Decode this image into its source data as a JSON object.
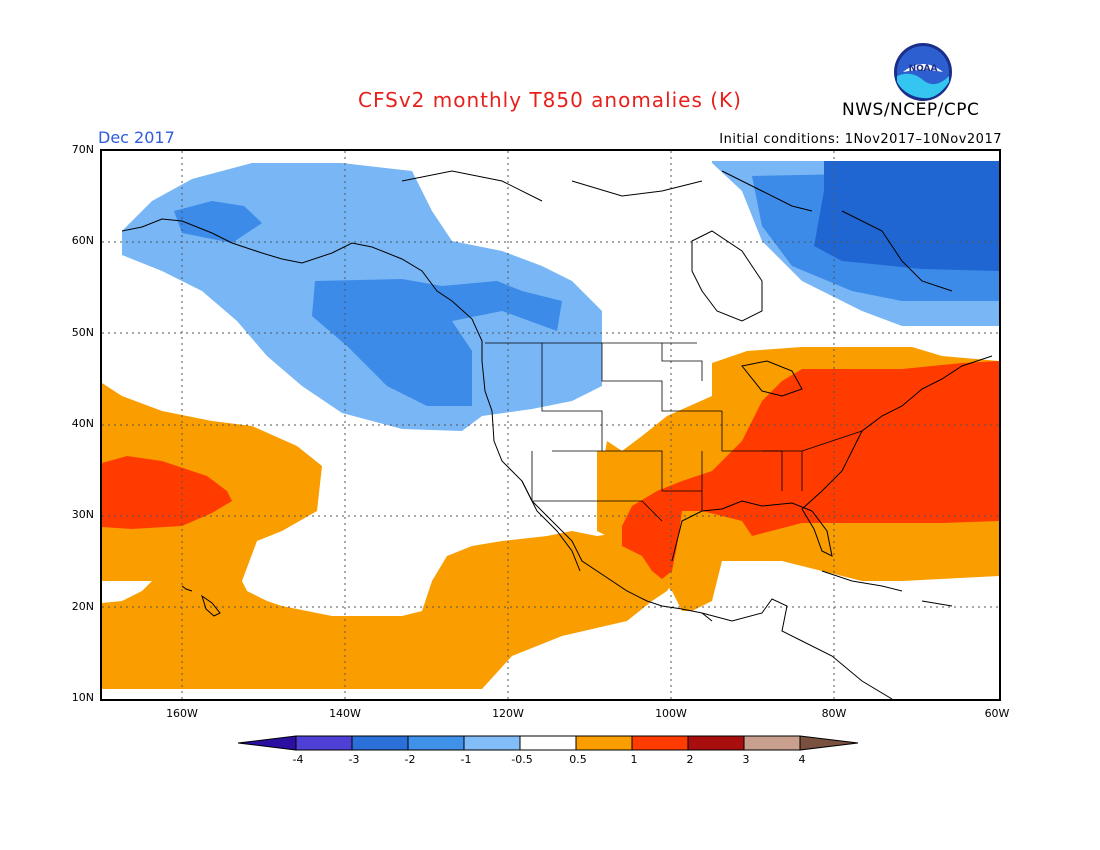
{
  "title": "CFSv2 monthly T850 anomalies (K)",
  "agency": "NWS/NCEP/CPC",
  "logo_text": "NOAA",
  "period_label": "Dec 2017",
  "initial_conditions": "Initial conditions: 1Nov2017–10Nov2017",
  "map": {
    "lat_labels": [
      "70N",
      "60N",
      "50N",
      "40N",
      "30N",
      "20N",
      "10N"
    ],
    "lon_labels": [
      "160W",
      "140W",
      "120W",
      "100W",
      "80W",
      "60W"
    ],
    "colors": {
      "neg3": "#1f66d2",
      "neg2": "#3c8be8",
      "neg1": "#78b6f6",
      "pos05": "#fa9e00",
      "pos1": "#ff3b00",
      "coast": "#000000",
      "grid": "#555555"
    }
  },
  "colorbar": {
    "labels": [
      "-4",
      "-3",
      "-2",
      "-1",
      "-0.5",
      "0.5",
      "1",
      "2",
      "3",
      "4"
    ],
    "colors": [
      "#2a0fa0",
      "#4e40d4",
      "#2b6fd9",
      "#3f91ea",
      "#82bdf8",
      "#ffffff",
      "#fa9e00",
      "#ff3b00",
      "#a90e0e",
      "#c9a08e",
      "#7a5040"
    ]
  }
}
